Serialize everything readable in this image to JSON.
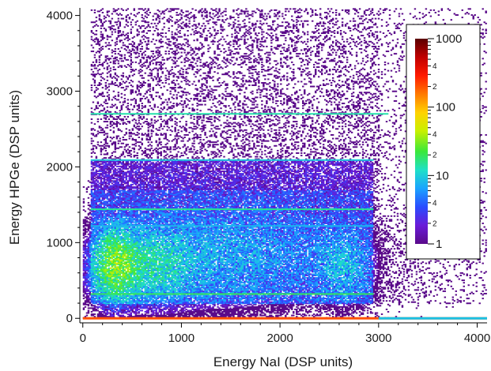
{
  "chart_data": {
    "type": "heatmap",
    "title": "",
    "xlabel": "Energy NaI (DSP units)",
    "ylabel": "Energy HPGe (DSP units)",
    "xlim": [
      -30,
      4100
    ],
    "ylim": [
      -60,
      4100
    ],
    "x_ticks": [
      0,
      1000,
      2000,
      3000,
      4000
    ],
    "y_ticks": [
      0,
      1000,
      2000,
      3000,
      4000
    ],
    "x_tick_labels": [
      "0",
      "1000",
      "2000",
      "3000",
      "4000"
    ],
    "y_tick_labels": [
      "0",
      "1000",
      "2000",
      "3000",
      "4000"
    ],
    "grid": false,
    "colorbar": {
      "scale": "log",
      "range": [
        1,
        1000
      ],
      "tick_values": [
        1,
        10,
        100,
        1000
      ],
      "tick_labels": [
        "1",
        "10",
        "100",
        "1000"
      ],
      "minor_tick_labels": [
        "2",
        "4",
        "2",
        "4",
        "2",
        "4"
      ],
      "minor_tick_values": [
        2,
        4,
        20,
        40,
        200,
        400
      ],
      "colors": [
        "#5a0a8a",
        "#6a1bd8",
        "#2a4cff",
        "#1aa3ff",
        "#1fe0c8",
        "#3ae83a",
        "#c8f000",
        "#ffd200",
        "#ff7a00",
        "#ff1a00",
        "#c00000",
        "#5a0000"
      ],
      "placement": "top-right"
    },
    "horizontal_lines": [
      {
        "y": 320,
        "x_range": [
          80,
          2950
        ],
        "count": 20
      },
      {
        "y": 1220,
        "x_range": [
          80,
          2950
        ],
        "count": 8
      },
      {
        "y": 1440,
        "x_range": [
          80,
          2950
        ],
        "count": 16
      },
      {
        "y": 2090,
        "x_range": [
          80,
          2950
        ],
        "count": 10
      },
      {
        "y": 2700,
        "x_range": [
          80,
          3100
        ],
        "count": 14
      },
      {
        "y": 0,
        "x_range": [
          0,
          4100
        ],
        "count": 200
      }
    ],
    "clusters": [
      {
        "x": 330,
        "y": 700,
        "sx": 130,
        "sy": 260,
        "peak": 25
      },
      {
        "x": 700,
        "y": 700,
        "sx": 250,
        "sy": 280,
        "peak": 8
      },
      {
        "x": 1400,
        "y": 800,
        "sx": 700,
        "sy": 400,
        "peak": 4
      },
      {
        "x": 2650,
        "y": 700,
        "sx": 160,
        "sy": 280,
        "peak": 5
      }
    ],
    "continuum": {
      "x_range": [
        80,
        2950
      ],
      "y_range": [
        200,
        2100
      ],
      "level": 2.5
    },
    "background": {
      "x_range": [
        80,
        4100
      ],
      "y_range": [
        200,
        4100
      ],
      "level": 0.25
    }
  }
}
